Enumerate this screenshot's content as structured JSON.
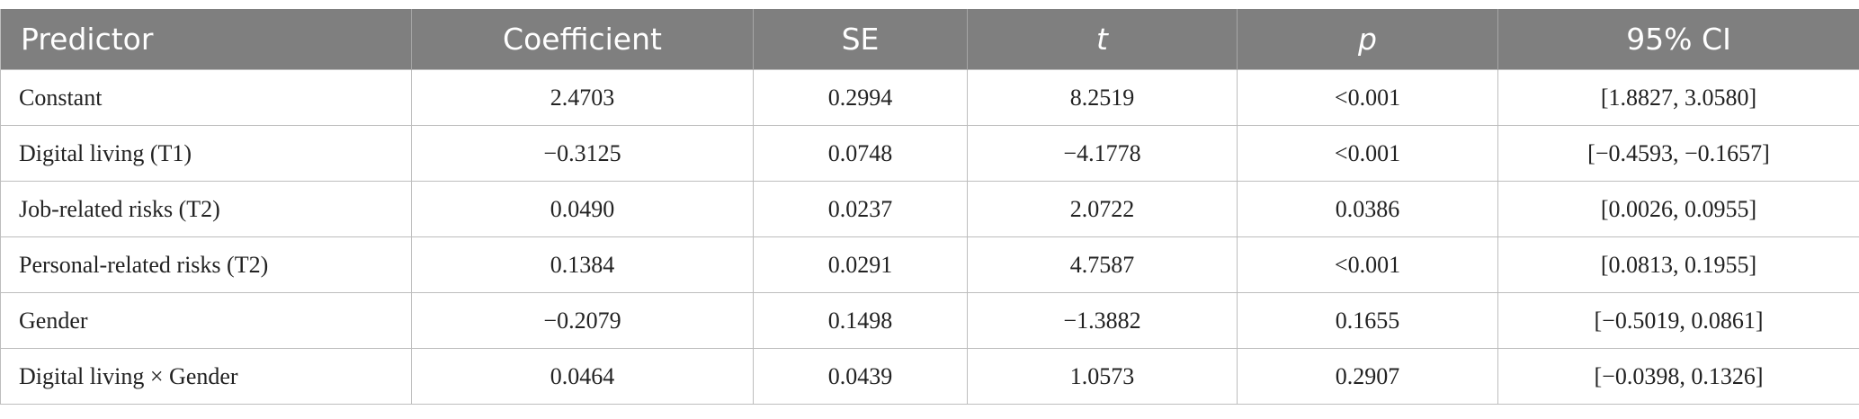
{
  "table": {
    "headers": [
      "Predictor",
      "Coefficient",
      "SE",
      "t",
      "p",
      "95% CI"
    ],
    "rows": [
      [
        "Constant",
        "2.4703",
        "0.2994",
        "8.2519",
        "<0.001",
        "[1.8827, 3.0580]"
      ],
      [
        "Digital living (T1)",
        "−0.3125",
        "0.0748",
        "−4.1778",
        "<0.001",
        "[−0.4593, −0.1657]"
      ],
      [
        "Job-related risks (T2)",
        "0.0490",
        "0.0237",
        "2.0722",
        "0.0386",
        "[0.0026, 0.0955]"
      ],
      [
        "Personal-related risks (T2)",
        "0.1384",
        "0.0291",
        "4.7587",
        "<0.001",
        "[0.0813, 0.1955]"
      ],
      [
        "Gender",
        "−0.2079",
        "0.1498",
        "−1.3882",
        "0.1655",
        "[−0.5019, 0.0861]"
      ],
      [
        "Digital living × Gender",
        "0.0464",
        "0.0439",
        "1.0573",
        "0.2907",
        "[−0.0398, 0.1326]"
      ]
    ]
  }
}
